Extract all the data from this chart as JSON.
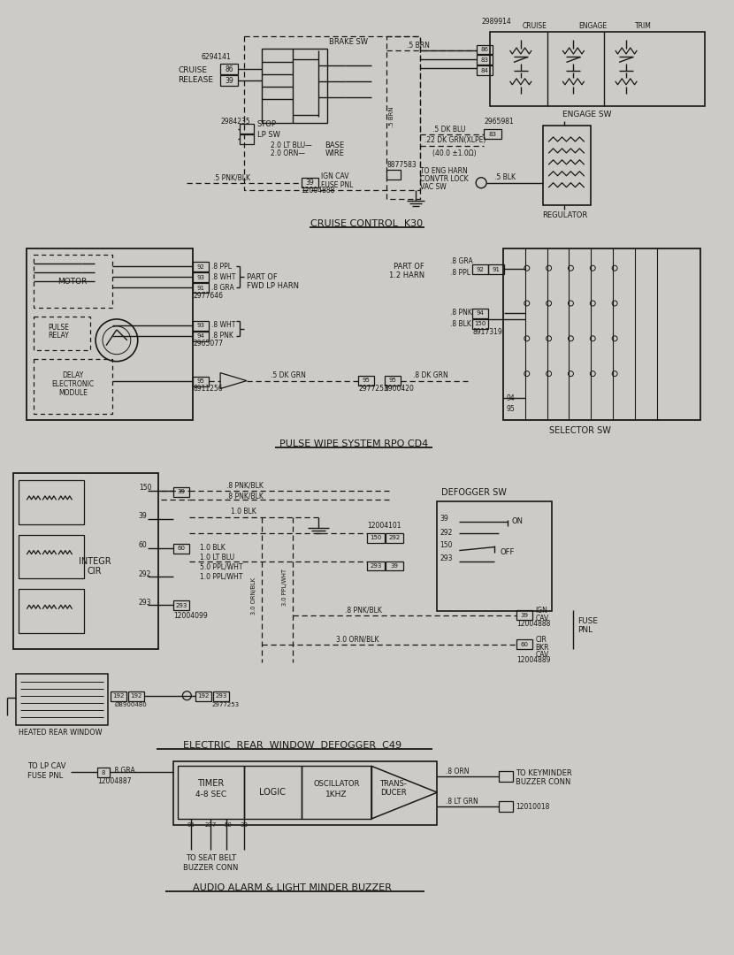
{
  "bg_color": "#cccbc6",
  "line_color": "#1a1714",
  "section1_title": "CRUISE CONTROL  K30",
  "section2_title": "PULSE WIPE SYSTEM RPO CD4",
  "section3_title": "ELECTRIC  REAR  WINDOW  DEFOGGER  C49",
  "section4_title": "AUDIO ALARM & LIGHT MINDER BUZZER",
  "s1y0": 20,
  "s2y0": 268,
  "s3y0": 530,
  "s4y0": 840
}
